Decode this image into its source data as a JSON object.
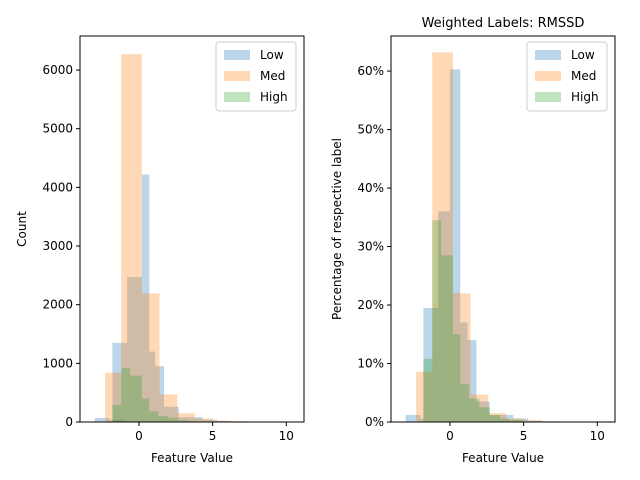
{
  "chart_data": [
    {
      "type": "bar",
      "title": "",
      "xlabel": "Feature Value",
      "ylabel": "Count",
      "xlim": [
        -4,
        11.2
      ],
      "ylim": [
        0,
        6580
      ],
      "xticks": [
        0,
        5,
        10
      ],
      "xtick_labels": [
        "0",
        "5",
        "10"
      ],
      "yticks": [
        0,
        1000,
        2000,
        3000,
        4000,
        5000,
        6000
      ],
      "ytick_labels": [
        "0",
        "1000",
        "2000",
        "3000",
        "4000",
        "5000",
        "6000"
      ],
      "legend_placement": "upper-right",
      "legend_entries": [
        "Low",
        "Med",
        "High"
      ],
      "series": [
        {
          "name": "Low",
          "color": "#1f77b4",
          "bins": [
            [
              -3.0,
              -2.0,
              70
            ],
            [
              -2.0,
              -1.0,
              40
            ],
            [
              -1.8,
              -0.8,
              1350
            ],
            [
              -0.8,
              0.2,
              2470
            ],
            [
              0.2,
              0.7,
              4220
            ],
            [
              0.7,
              1.1,
              1200
            ],
            [
              1.1,
              1.7,
              950
            ],
            [
              1.7,
              2.7,
              260
            ],
            [
              2.7,
              4.3,
              80
            ],
            [
              4.3,
              5.3,
              40
            ],
            [
              5.3,
              6.3,
              15
            ]
          ]
        },
        {
          "name": "Med",
          "color": "#ff7f0e",
          "bins": [
            [
              -2.3,
              -1.2,
              840
            ],
            [
              -1.2,
              0.2,
              6270
            ],
            [
              0.2,
              1.4,
              2190
            ],
            [
              1.4,
              2.6,
              470
            ],
            [
              2.6,
              3.8,
              150
            ],
            [
              3.8,
              5.0,
              60
            ],
            [
              5.0,
              6.2,
              25
            ],
            [
              6.2,
              7.4,
              12
            ],
            [
              7.4,
              8.6,
              6
            ],
            [
              8.6,
              9.8,
              3
            ],
            [
              9.8,
              11.0,
              2
            ]
          ]
        },
        {
          "name": "High",
          "color": "#2ca02c",
          "bins": [
            [
              -1.8,
              -1.2,
              290
            ],
            [
              -1.2,
              -0.6,
              920
            ],
            [
              -0.6,
              0.2,
              790
            ],
            [
              0.2,
              0.7,
              400
            ],
            [
              0.7,
              1.3,
              180
            ],
            [
              1.3,
              2.0,
              100
            ],
            [
              2.0,
              2.7,
              70
            ],
            [
              2.7,
              3.4,
              30
            ],
            [
              3.4,
              4.0,
              15
            ],
            [
              4.0,
              5.0,
              8
            ]
          ]
        }
      ]
    },
    {
      "type": "bar",
      "title": "Weighted Labels: RMSSD",
      "xlabel": "Feature Value",
      "ylabel": "Percentage of respective label",
      "xlim": [
        -4,
        11.2
      ],
      "ylim": [
        0,
        0.66
      ],
      "xticks": [
        0,
        5,
        10
      ],
      "xtick_labels": [
        "0",
        "5",
        "10"
      ],
      "yticks": [
        0,
        0.1,
        0.2,
        0.3,
        0.4,
        0.5,
        0.6
      ],
      "ytick_labels": [
        "0%",
        "10%",
        "20%",
        "30%",
        "40%",
        "50%",
        "60%"
      ],
      "legend_placement": "upper-right",
      "legend_entries": [
        "Low",
        "Med",
        "High"
      ],
      "series": [
        {
          "name": "Low",
          "color": "#1f77b4",
          "bins": [
            [
              -3.0,
              -2.0,
              0.012
            ],
            [
              -2.0,
              -1.8,
              0.006
            ],
            [
              -1.8,
              -0.8,
              0.195
            ],
            [
              -0.8,
              0.0,
              0.36
            ],
            [
              0.0,
              0.7,
              0.603
            ],
            [
              0.7,
              1.2,
              0.17
            ],
            [
              1.2,
              1.8,
              0.14
            ],
            [
              1.8,
              2.7,
              0.035
            ],
            [
              2.7,
              4.3,
              0.012
            ],
            [
              4.3,
              5.3,
              0.006
            ],
            [
              5.3,
              6.3,
              0.002
            ]
          ]
        },
        {
          "name": "Med",
          "color": "#ff7f0e",
          "bins": [
            [
              -2.3,
              -1.2,
              0.086
            ],
            [
              -1.2,
              0.2,
              0.632
            ],
            [
              0.2,
              1.4,
              0.22
            ],
            [
              1.4,
              2.6,
              0.047
            ],
            [
              2.6,
              3.8,
              0.015
            ],
            [
              3.8,
              5.0,
              0.006
            ],
            [
              5.0,
              6.2,
              0.003
            ],
            [
              6.2,
              7.4,
              0.0015
            ],
            [
              7.4,
              8.6,
              0.0008
            ],
            [
              8.6,
              9.8,
              0.0004
            ],
            [
              9.8,
              11.0,
              0.0002
            ]
          ]
        },
        {
          "name": "High",
          "color": "#2ca02c",
          "bins": [
            [
              -1.8,
              -1.2,
              0.108
            ],
            [
              -1.2,
              -0.6,
              0.345
            ],
            [
              -0.6,
              0.2,
              0.285
            ],
            [
              0.2,
              0.7,
              0.15
            ],
            [
              0.7,
              1.3,
              0.065
            ],
            [
              1.3,
              2.0,
              0.04
            ],
            [
              2.0,
              2.7,
              0.025
            ],
            [
              2.7,
              3.4,
              0.012
            ],
            [
              3.4,
              4.0,
              0.006
            ],
            [
              4.0,
              5.0,
              0.003
            ]
          ]
        }
      ]
    }
  ]
}
